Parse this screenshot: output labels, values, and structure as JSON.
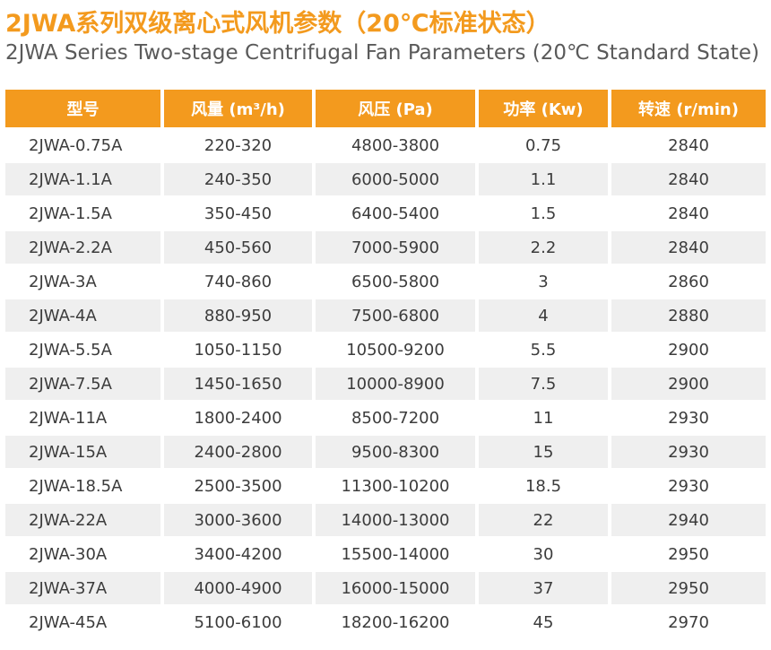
{
  "title_cn": "2JWA系列双级离心式风机参数（20℃标准状态）",
  "title_en": "2JWA Series Two-stage Centrifugal Fan Parameters (20℃ Standard State)",
  "colors": {
    "accent": "#f39a1e",
    "header_text": "#ffffff",
    "alt_row": "#efefef",
    "body_text": "#3c3c3c"
  },
  "table": {
    "headers": [
      "型号",
      "风量 (m³/h)",
      "风压 (Pa)",
      "功率 (Kw)",
      "转速 (r/min)"
    ],
    "rows": [
      [
        "2JWA-0.75A",
        "220-320",
        "4800-3800",
        "0.75",
        "2840"
      ],
      [
        "2JWA-1.1A",
        "240-350",
        "6000-5000",
        "1.1",
        "2840"
      ],
      [
        "2JWA-1.5A",
        "350-450",
        "6400-5400",
        "1.5",
        "2840"
      ],
      [
        "2JWA-2.2A",
        "450-560",
        "7000-5900",
        "2.2",
        "2840"
      ],
      [
        "2JWA-3A",
        "740-860",
        "6500-5800",
        "3",
        "2860"
      ],
      [
        "2JWA-4A",
        "880-950",
        "7500-6800",
        "4",
        "2880"
      ],
      [
        "2JWA-5.5A",
        "1050-1150",
        "10500-9200",
        "5.5",
        "2900"
      ],
      [
        "2JWA-7.5A",
        "1450-1650",
        "10000-8900",
        "7.5",
        "2900"
      ],
      [
        "2JWA-11A",
        "1800-2400",
        "8500-7200",
        "11",
        "2930"
      ],
      [
        "2JWA-15A",
        "2400-2800",
        "9500-8300",
        "15",
        "2930"
      ],
      [
        "2JWA-18.5A",
        "2500-3500",
        "11300-10200",
        "18.5",
        "2930"
      ],
      [
        "2JWA-22A",
        "3000-3600",
        "14000-13000",
        "22",
        "2940"
      ],
      [
        "2JWA-30A",
        "3400-4200",
        "15500-14000",
        "30",
        "2950"
      ],
      [
        "2JWA-37A",
        "4000-4900",
        "16000-15000",
        "37",
        "2950"
      ],
      [
        "2JWA-45A",
        "5100-6100",
        "18200-16200",
        "45",
        "2970"
      ]
    ]
  }
}
